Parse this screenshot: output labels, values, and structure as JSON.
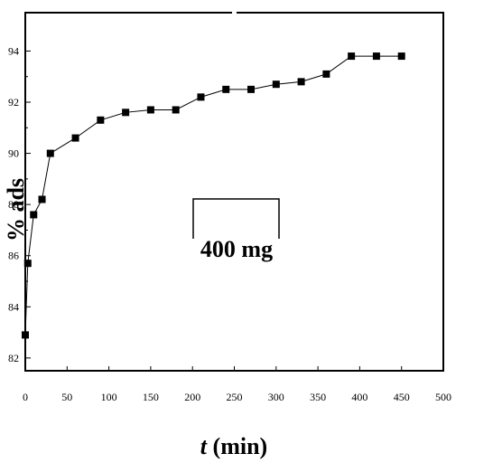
{
  "chart_data": {
    "type": "line",
    "xlabel": {
      "variable": "t",
      "unit": "(min)"
    },
    "ylabel": "% ads",
    "xlim": [
      0,
      500
    ],
    "ylim": [
      81.5,
      95.5
    ],
    "x_ticks": [
      0,
      50,
      100,
      150,
      200,
      250,
      300,
      350,
      400,
      450,
      500
    ],
    "y_ticks": [
      82,
      84,
      86,
      88,
      90,
      92,
      94
    ],
    "x_tick_labels": [
      "0",
      "50",
      "100",
      "150",
      "200",
      "250",
      "300",
      "350",
      "400",
      "450",
      "500"
    ],
    "y_tick_labels": [
      "82",
      "84",
      "86",
      "88",
      "90",
      "92",
      "94"
    ],
    "grid": false,
    "annotation": "400 mg",
    "marker": "square",
    "series": [
      {
        "x": [
          0,
          3,
          10,
          20,
          30,
          60,
          90,
          120,
          150,
          180,
          210,
          240,
          270,
          300,
          330,
          360,
          390,
          420,
          450
        ],
        "y": [
          82.9,
          85.7,
          87.6,
          88.2,
          90.0,
          90.6,
          91.3,
          91.6,
          91.7,
          91.7,
          92.2,
          92.5,
          92.5,
          92.7,
          92.8,
          93.1,
          93.8,
          93.8,
          93.8
        ],
        "color": "#000000"
      }
    ]
  }
}
